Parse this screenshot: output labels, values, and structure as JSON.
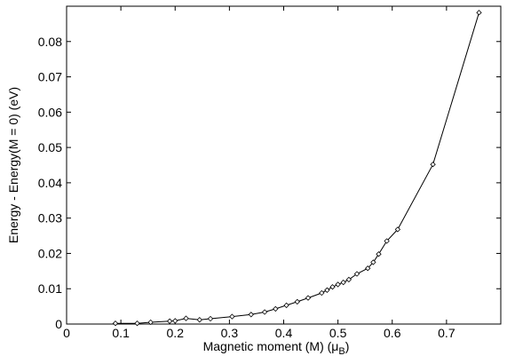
{
  "chart_data": {
    "type": "line",
    "title": "",
    "xlabel_main": "Magnetic moment (M) (μ",
    "xlabel_sub": "B",
    "xlabel_close": ")",
    "ylabel": "Energy - Energy(M = 0) (eV)",
    "xlim": [
      0,
      0.8
    ],
    "ylim": [
      0,
      0.09
    ],
    "grid": false,
    "marker": "diamond",
    "xticks": [
      0,
      0.1,
      0.2,
      0.3,
      0.4,
      0.5,
      0.6,
      0.7
    ],
    "xtick_labels": [
      "0",
      "0.1",
      "0.2",
      "0.3",
      "0.4",
      "0.5",
      "0.6",
      "0.7"
    ],
    "yticks": [
      0,
      0.01,
      0.02,
      0.03,
      0.04,
      0.05,
      0.06,
      0.07,
      0.08
    ],
    "ytick_labels": [
      "0",
      "0.01",
      "0.02",
      "0.03",
      "0.04",
      "0.05",
      "0.06",
      "0.07",
      "0.08"
    ],
    "series": [
      {
        "x": [
          0.09,
          0.13,
          0.155,
          0.19,
          0.2,
          0.22,
          0.245,
          0.265,
          0.305,
          0.34,
          0.365,
          0.385,
          0.405,
          0.425,
          0.445,
          0.47,
          0.48,
          0.49,
          0.5,
          0.51,
          0.52,
          0.535,
          0.555,
          0.565,
          0.575,
          0.59,
          0.61,
          0.675,
          0.76
        ],
        "y": [
          0.0002,
          0.0002,
          0.0005,
          0.0008,
          0.0009,
          0.0016,
          0.0012,
          0.0015,
          0.0021,
          0.0027,
          0.0034,
          0.0043,
          0.0053,
          0.0063,
          0.0074,
          0.0088,
          0.0096,
          0.0105,
          0.0112,
          0.0118,
          0.0126,
          0.0142,
          0.0158,
          0.0175,
          0.0198,
          0.0235,
          0.0268,
          0.0452,
          0.0882
        ]
      }
    ]
  }
}
